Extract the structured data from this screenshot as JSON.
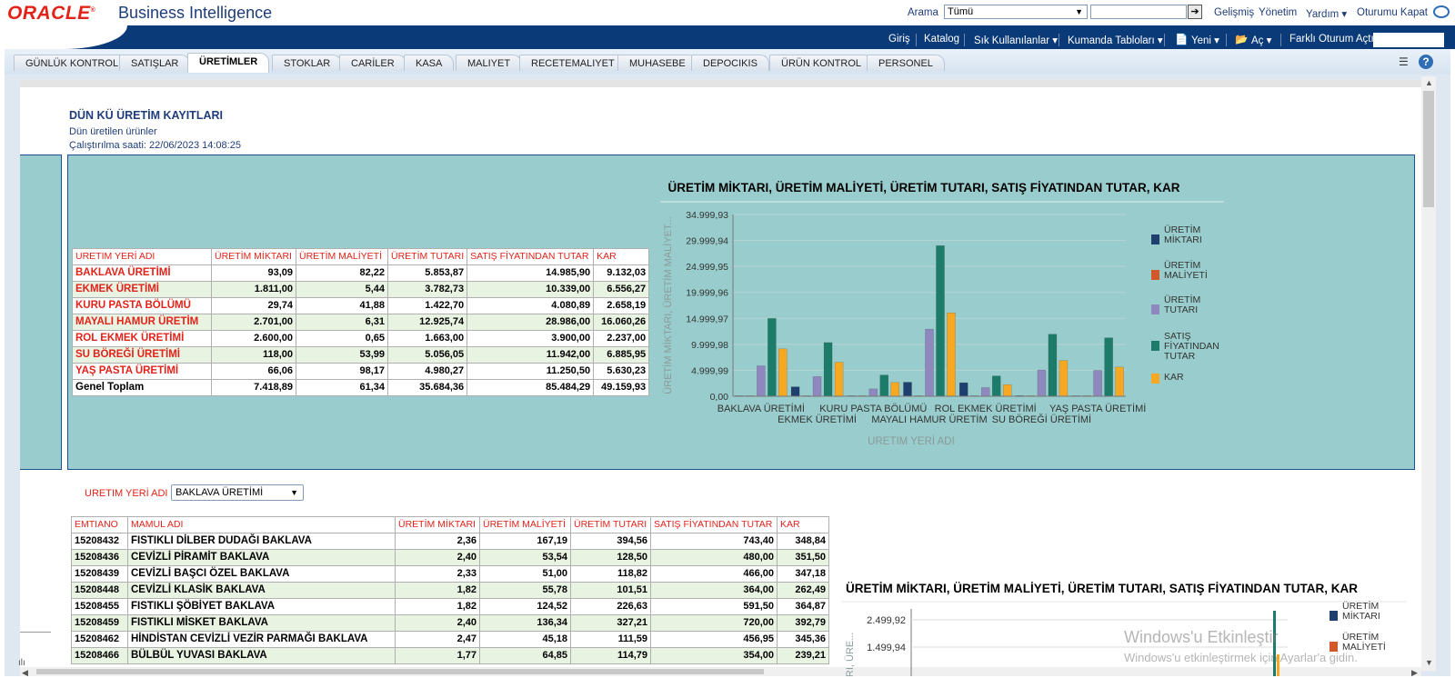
{
  "header": {
    "brand": "ORACLE",
    "product": "Business Intelligence",
    "search_label": "Arama",
    "search_scope": "Tümü",
    "links": [
      "Gelişmiş",
      "Yönetim",
      "Yardım ▾",
      "Oturumu Kapat"
    ]
  },
  "navbar": {
    "links": [
      "Giriş",
      "Katalog",
      "Sık Kullanılanlar ▾",
      "Kumanda Tabloları ▾",
      "Yeni ▾",
      "Aç ▾",
      "Farklı Oturum Açtı"
    ]
  },
  "tabs": [
    "GÜNLÜK KONTROL",
    "SATIŞLAR",
    "ÜRETİMLER",
    "STOKLAR",
    "CARİLER",
    "KASA",
    "MALIYET",
    "RECETEMALIYET",
    "MUHASEBE",
    "DEPOCIKIS",
    "ÜRÜN KONTROL",
    "PERSONEL"
  ],
  "active_tab": "ÜRETİMLER",
  "report": {
    "title": "DÜN KÜ ÜRETİM KAYITLARI",
    "subtitle": "Dün üretilen ürünler",
    "run_time": "Çalıştırılma saati: 22/06/2023 14:08:25"
  },
  "summary_table": {
    "headers": [
      "URETIM YERİ ADI",
      "ÜRETİM MİKTARI",
      "ÜRETİM MALİYETİ",
      "ÜRETİM TUTARI",
      "SATIŞ FİYATINDAN TUTAR",
      "KAR"
    ],
    "rows": [
      [
        "BAKLAVA ÜRETİMİ",
        "93,09",
        "82,22",
        "5.853,87",
        "14.985,90",
        "9.132,03"
      ],
      [
        "EKMEK ÜRETİMİ",
        "1.811,00",
        "5,44",
        "3.782,73",
        "10.339,00",
        "6.556,27"
      ],
      [
        "KURU PASTA BÖLÜMÜ",
        "29,74",
        "41,88",
        "1.422,70",
        "4.080,89",
        "2.658,19"
      ],
      [
        "MAYALI HAMUR ÜRETİM",
        "2.701,00",
        "6,31",
        "12.925,74",
        "28.986,00",
        "16.060,26"
      ],
      [
        "ROL EKMEK ÜRETİMİ",
        "2.600,00",
        "0,65",
        "1.663,00",
        "3.900,00",
        "2.237,00"
      ],
      [
        "SU BÖREĞİ ÜRETİMİ",
        "118,00",
        "53,99",
        "5.056,05",
        "11.942,00",
        "6.885,95"
      ],
      [
        "YAŞ PASTA ÜRETİMİ",
        "66,06",
        "98,17",
        "4.980,27",
        "11.250,50",
        "5.630,23"
      ]
    ],
    "total": [
      "Genel Toplam",
      "7.418,89",
      "61,34",
      "35.684,36",
      "85.484,29",
      "49.159,93"
    ]
  },
  "chart_data": [
    {
      "type": "bar",
      "title": "ÜRETİM MİKTARI, ÜRETİM MALİYETİ, ÜRETİM TUTARI, SATIŞ FİYATINDAN TUTAR, KAR",
      "xlabel": "URETIM YERİ ADI",
      "ylabel": "ÜRETİM MİKTARI, ÜRETİM MALİYET...",
      "ylim": [
        0,
        34999.93
      ],
      "yticks": [
        "34.999,93",
        "29.999,94",
        "24.999,95",
        "19.999,96",
        "14.999,97",
        "9.999,98",
        "4.999,99",
        "0,00"
      ],
      "legend_position": "right",
      "categories": [
        "BAKLAVA ÜRETİMİ",
        "EKMEK ÜRETİMİ",
        "KURU PASTA BÖLÜMÜ",
        "MAYALI HAMUR ÜRETİM",
        "ROL EKMEK ÜRETİMİ",
        "SU BÖREĞİ ÜRETİMİ",
        "YAŞ PASTA ÜRETİMİ"
      ],
      "series": [
        {
          "name": "ÜRETİM MİKTARI",
          "color": "#1f3f6e",
          "values": [
            93.09,
            1811.0,
            29.74,
            2701.0,
            2600.0,
            118.0,
            66.06
          ]
        },
        {
          "name": "ÜRETİM MALİYETİ",
          "color": "#d4572a",
          "values": [
            82.22,
            5.44,
            41.88,
            6.31,
            0.65,
            53.99,
            98.17
          ]
        },
        {
          "name": "ÜRETİM TUTARI",
          "color": "#8f88bf",
          "values": [
            5853.87,
            3782.73,
            1422.7,
            12925.74,
            1663.0,
            5056.05,
            4980.27
          ]
        },
        {
          "name": "SATIŞ FİYATINDAN TUTAR",
          "color": "#1d7b6a",
          "values": [
            14985.9,
            10339.0,
            4080.89,
            28986.0,
            3900.0,
            11942.0,
            11250.5
          ]
        },
        {
          "name": "KAR",
          "color": "#f7a823",
          "values": [
            9132.03,
            6556.27,
            2658.19,
            16060.26,
            2237.0,
            6885.95,
            5630.23
          ]
        }
      ]
    },
    {
      "type": "bar",
      "title": "ÜRETİM MİKTARI, ÜRETİM MALİYETİ, ÜRETİM TUTARI, SATIŞ FİYATINDAN TUTAR, KAR",
      "ylabel": "ARI, ÜRE...",
      "yticks": [
        "2.499,92",
        "1.499,94"
      ],
      "legend_position": "right",
      "series": [
        {
          "name": "ÜRETİM MİKTARI",
          "color": "#1f3f6e"
        },
        {
          "name": "ÜRETİM MALİYETİ",
          "color": "#d4572a"
        }
      ]
    }
  ],
  "filter": {
    "label": "URETIM YERİ ADI",
    "value": "BAKLAVA ÜRETİMİ"
  },
  "detail_table": {
    "headers": [
      "EMTIANO",
      "MAMUL ADI",
      "ÜRETİM MİKTARI",
      "ÜRETİM MALİYETİ",
      "ÜRETİM TUTARI",
      "SATIŞ FİYATINDAN TUTAR",
      "KAR"
    ],
    "rows": [
      [
        "15208432",
        "FISTIKLI DİLBER DUDAĞI BAKLAVA",
        "2,36",
        "167,19",
        "394,56",
        "743,40",
        "348,84"
      ],
      [
        "15208436",
        "CEVİZLİ PİRAMİT BAKLAVA",
        "2,40",
        "53,54",
        "128,50",
        "480,00",
        "351,50"
      ],
      [
        "15208439",
        "CEVİZLİ BAŞCI ÖZEL BAKLAVA",
        "2,33",
        "51,00",
        "118,82",
        "466,00",
        "347,18"
      ],
      [
        "15208448",
        "CEVİZLİ KLASİK BAKLAVA",
        "1,82",
        "55,78",
        "101,51",
        "364,00",
        "262,49"
      ],
      [
        "15208455",
        "FISTIKLI ŞÖBİYET BAKLAVA",
        "1,82",
        "124,52",
        "226,63",
        "591,50",
        "364,87"
      ],
      [
        "15208459",
        "FISTIKLI MİSKET BAKLAVA",
        "2,40",
        "136,34",
        "327,21",
        "720,00",
        "392,79"
      ],
      [
        "15208462",
        "HİNDİSTAN CEVİZLİ VEZİR PARMAĞI BAKLAVA",
        "2,47",
        "45,18",
        "111,59",
        "456,95",
        "345,36"
      ],
      [
        "15208466",
        "BÜLBÜL YUVASI BAKLAVA",
        "1,77",
        "64,85",
        "114,79",
        "354,00",
        "239,21"
      ]
    ]
  },
  "watermark": {
    "line1": "Windows'u Etkinleştir",
    "line2": "Windows'u etkinleştirmek için Ayarlar'a gidin."
  }
}
